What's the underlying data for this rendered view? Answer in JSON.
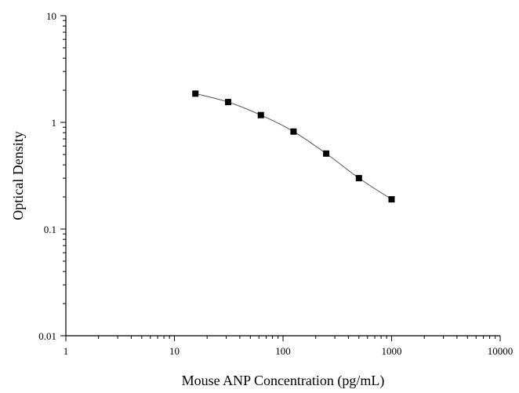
{
  "chart_data": {
    "type": "scatter",
    "title": "",
    "xlabel": "Mouse ANP Concentration (pg/mL)",
    "ylabel": "Optical Density",
    "xscale": "log",
    "yscale": "log",
    "xlim": [
      1,
      10000
    ],
    "ylim": [
      0.01,
      10
    ],
    "x_ticks": [
      1,
      10,
      100,
      1000,
      10000
    ],
    "x_tick_labels": [
      "1",
      "10",
      "100",
      "1000",
      "10000"
    ],
    "y_ticks": [
      0.01,
      0.1,
      1,
      10
    ],
    "y_tick_labels": [
      "0.01",
      "0.1",
      "1",
      "10"
    ],
    "grid": false,
    "legend": "none",
    "series": [
      {
        "x": [
          15.6,
          31.25,
          62.5,
          125,
          250,
          500,
          1000
        ],
        "y": [
          1.86,
          1.55,
          1.17,
          0.82,
          0.51,
          0.3,
          0.19
        ],
        "marker": "square",
        "fitted_line": true
      }
    ],
    "colors": {
      "marker": "#000000",
      "line": "#555555",
      "axis": "#000000"
    }
  }
}
